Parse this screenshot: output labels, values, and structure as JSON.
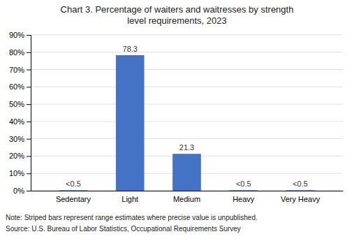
{
  "chart_data": {
    "type": "bar",
    "title": "Chart 3. Percentage of waiters and waitresses by strength\nlevel requirements, 2023",
    "categories": [
      "Sedentary",
      "Light",
      "Medium",
      "Heavy",
      "Very Heavy"
    ],
    "values": [
      0.25,
      78.3,
      21.3,
      0.25,
      0.25
    ],
    "value_labels": [
      "<0.5",
      "78.3",
      "21.3",
      "<0.5",
      "<0.5"
    ],
    "data_labels": true,
    "color": "#4472C4",
    "ylim": [
      0,
      90
    ],
    "yticks": [
      {
        "value": 0,
        "label": "0%"
      },
      {
        "value": 10,
        "label": "10%"
      },
      {
        "value": 20,
        "label": "20%"
      },
      {
        "value": 30,
        "label": "30%"
      },
      {
        "value": 40,
        "label": "40%"
      },
      {
        "value": 50,
        "label": "50%"
      },
      {
        "value": 60,
        "label": "60%"
      },
      {
        "value": 70,
        "label": "70%"
      },
      {
        "value": 80,
        "label": "80%"
      },
      {
        "value": 90,
        "label": "90%"
      }
    ],
    "grid": true,
    "annotations": [
      "Note: Striped bars represent range estimates where precise value is unpublished.",
      "Source: U.S. Bureau of Labor Statistics, Occupational Requirements Survey"
    ]
  }
}
